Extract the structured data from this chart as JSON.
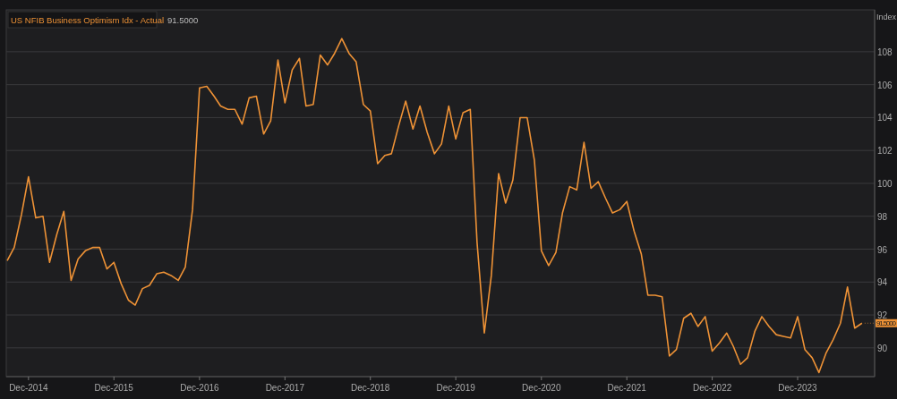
{
  "chart_data": {
    "type": "line",
    "ylabel": "Index",
    "legend": "top left",
    "grid": "y",
    "tick_labels": "xy",
    "xlim": [
      "2014-08-28",
      "2024-10-25"
    ],
    "ylim": [
      88.25,
      110.55
    ],
    "xticks": [
      {
        "value": "2014-12",
        "label": "Dec-2014"
      },
      {
        "value": "2015-12",
        "label": "Dec-2015"
      },
      {
        "value": "2016-12",
        "label": "Dec-2016"
      },
      {
        "value": "2017-12",
        "label": "Dec-2017"
      },
      {
        "value": "2018-12",
        "label": "Dec-2018"
      },
      {
        "value": "2019-12",
        "label": "Dec-2019"
      },
      {
        "value": "2020-12",
        "label": "Dec-2020"
      },
      {
        "value": "2021-12",
        "label": "Dec-2021"
      },
      {
        "value": "2022-12",
        "label": "Dec-2022"
      },
      {
        "value": "2023-12",
        "label": "Dec-2023"
      }
    ],
    "yticks": [
      90,
      92,
      94,
      96,
      98,
      100,
      102,
      104,
      106,
      108
    ],
    "annotations": [
      {
        "text": "91.5000",
        "x": "2024-09",
        "y": 91.5
      }
    ],
    "x": [
      "2014-09",
      "2014-10",
      "2014-11",
      "2014-12",
      "2015-01",
      "2015-02",
      "2015-03",
      "2015-04",
      "2015-05",
      "2015-06",
      "2015-07",
      "2015-08",
      "2015-09",
      "2015-10",
      "2015-11",
      "2015-12",
      "2016-01",
      "2016-02",
      "2016-03",
      "2016-04",
      "2016-05",
      "2016-06",
      "2016-07",
      "2016-08",
      "2016-09",
      "2016-10",
      "2016-11",
      "2016-12",
      "2017-01",
      "2017-02",
      "2017-03",
      "2017-04",
      "2017-05",
      "2017-06",
      "2017-07",
      "2017-08",
      "2017-09",
      "2017-10",
      "2017-11",
      "2017-12",
      "2018-01",
      "2018-02",
      "2018-03",
      "2018-04",
      "2018-05",
      "2018-06",
      "2018-07",
      "2018-08",
      "2018-09",
      "2018-10",
      "2018-11",
      "2018-12",
      "2019-01",
      "2019-02",
      "2019-03",
      "2019-04",
      "2019-05",
      "2019-06",
      "2019-07",
      "2019-08",
      "2019-09",
      "2019-10",
      "2019-11",
      "2019-12",
      "2020-01",
      "2020-02",
      "2020-03",
      "2020-04",
      "2020-05",
      "2020-06",
      "2020-07",
      "2020-08",
      "2020-09",
      "2020-10",
      "2020-11",
      "2020-12",
      "2021-01",
      "2021-02",
      "2021-03",
      "2021-04",
      "2021-05",
      "2021-06",
      "2021-07",
      "2021-08",
      "2021-09",
      "2021-10",
      "2021-11",
      "2021-12",
      "2022-01",
      "2022-02",
      "2022-03",
      "2022-04",
      "2022-05",
      "2022-06",
      "2022-07",
      "2022-08",
      "2022-09",
      "2022-10",
      "2022-11",
      "2022-12",
      "2023-01",
      "2023-02",
      "2023-03",
      "2023-04",
      "2023-05",
      "2023-06",
      "2023-07",
      "2023-08",
      "2023-09",
      "2023-10",
      "2023-11",
      "2023-12",
      "2024-01",
      "2024-02",
      "2024-03",
      "2024-04",
      "2024-05",
      "2024-06",
      "2024-07",
      "2024-08",
      "2024-09"
    ],
    "series": [
      {
        "name": "US NFIB Business Optimism Idx - Actual",
        "color": "#ee9236",
        "values": [
          95.3,
          96.1,
          98.1,
          100.4,
          97.9,
          98.0,
          95.2,
          96.9,
          98.3,
          94.1,
          95.4,
          95.9,
          96.1,
          96.1,
          94.8,
          95.2,
          93.9,
          92.9,
          92.6,
          93.6,
          93.8,
          94.5,
          94.6,
          94.4,
          94.1,
          94.9,
          98.4,
          105.8,
          105.9,
          105.3,
          104.7,
          104.5,
          104.5,
          103.6,
          105.2,
          105.3,
          103.0,
          103.8,
          107.5,
          104.9,
          106.9,
          107.6,
          104.7,
          104.8,
          107.8,
          107.2,
          107.9,
          108.8,
          107.9,
          107.4,
          104.8,
          104.4,
          101.2,
          101.7,
          101.8,
          103.5,
          105.0,
          103.3,
          104.7,
          103.1,
          101.8,
          102.4,
          104.7,
          102.7,
          104.3,
          104.5,
          96.4,
          90.9,
          94.4,
          100.6,
          98.8,
          100.2,
          104.0,
          104.0,
          101.4,
          95.9,
          95.0,
          95.8,
          98.2,
          99.8,
          99.6,
          102.5,
          99.7,
          100.1,
          99.1,
          98.2,
          98.4,
          98.9,
          97.1,
          95.7,
          93.2,
          93.2,
          93.1,
          89.5,
          89.9,
          91.8,
          92.1,
          91.3,
          91.9,
          89.8,
          90.3,
          90.9,
          90.1,
          89.0,
          89.4,
          91.0,
          91.9,
          91.3,
          90.8,
          90.7,
          90.6,
          91.9,
          89.9,
          89.4,
          88.5,
          89.7,
          90.5,
          91.5,
          93.7,
          91.2,
          91.5
        ]
      }
    ]
  }
}
